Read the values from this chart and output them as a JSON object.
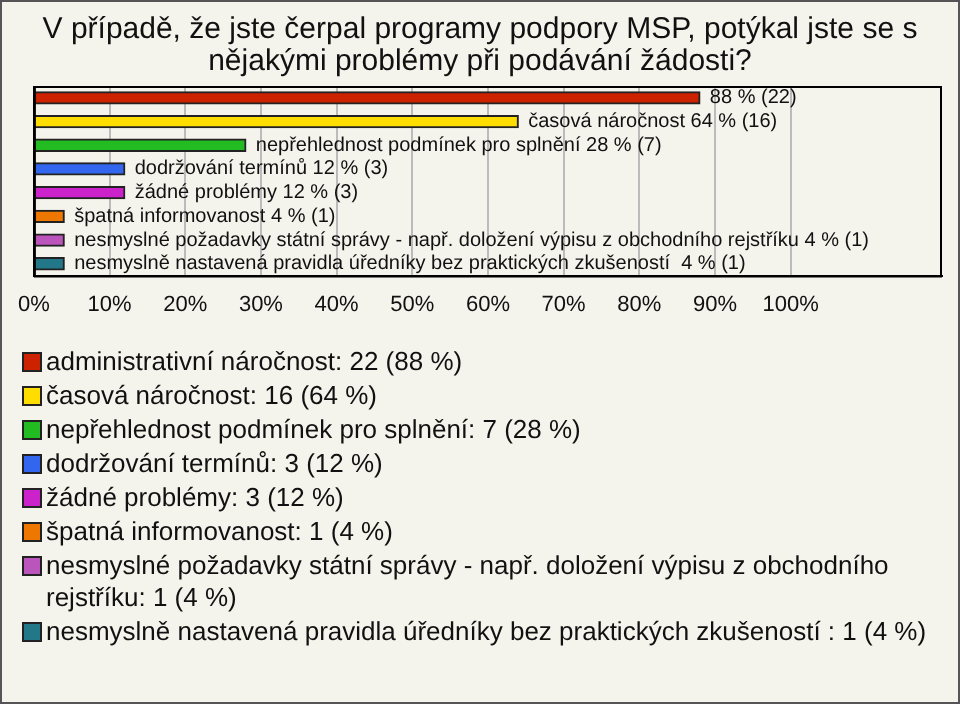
{
  "chart_data": {
    "type": "bar",
    "orientation": "horizontal",
    "title": "V případě, že jste čerpal programy podpory MSP, potýkal jste se s nějakými problémy při podávání žádosti?",
    "categories": [
      null,
      null,
      null,
      null,
      null,
      null,
      null,
      null
    ],
    "series": [
      {
        "name": "administrativní náročnost: 22 (88 %)",
        "color": "#cc2200",
        "values": [
          88,
          null,
          null,
          null,
          null,
          null,
          null,
          null
        ],
        "value_labels": [
          "88 % (22)",
          null,
          null,
          null,
          null,
          null,
          null,
          null
        ]
      },
      {
        "name": "časová náročnost: 16 (64 %)",
        "color": "#ffdd00",
        "values": [
          null,
          64,
          null,
          null,
          null,
          null,
          null,
          null
        ],
        "value_labels": [
          null,
          "časová náročnost 64 % (16)",
          null,
          null,
          null,
          null,
          null,
          null
        ]
      },
      {
        "name": "nepřehlednost podmínek pro splnění: 7 (28 %)",
        "color": "#22bb22",
        "values": [
          null,
          null,
          28,
          null,
          null,
          null,
          null,
          null
        ],
        "value_labels": [
          null,
          null,
          "nepřehlednost podmínek pro splnění 28 % (7)",
          null,
          null,
          null,
          null,
          null
        ]
      },
      {
        "name": "dodržování termínů: 3 (12 %)",
        "color": "#3366ee",
        "values": [
          null,
          null,
          null,
          12,
          null,
          null,
          null,
          null
        ],
        "value_labels": [
          null,
          null,
          null,
          "dodržování termínů 12 % (3)",
          null,
          null,
          null,
          null
        ]
      },
      {
        "name": "žádné problémy: 3 (12 %)",
        "color": "#cc22cc",
        "values": [
          null,
          null,
          null,
          null,
          12,
          null,
          null,
          null
        ],
        "value_labels": [
          null,
          null,
          null,
          null,
          "žádné problémy 12 % (3)",
          null,
          null,
          null
        ]
      },
      {
        "name": "špatná informovanost: 1 (4 %)",
        "color": "#ee7700",
        "values": [
          null,
          null,
          null,
          null,
          null,
          4,
          null,
          null
        ],
        "value_labels": [
          null,
          null,
          null,
          null,
          null,
          "špatná informovanost 4 % (1)",
          null,
          null
        ]
      },
      {
        "name": "nesmyslné požadavky státní správy - např. doložení výpisu z obchodního rejstříku: 1 (4 %)",
        "color": "#bb55bb",
        "values": [
          null,
          null,
          null,
          null,
          null,
          null,
          4,
          null
        ],
        "value_labels": [
          null,
          null,
          null,
          null,
          null,
          null,
          "nesmyslné požadavky státní správy - např. doložení výpisu z obchodního rejstříku 4 % (1)",
          null
        ]
      },
      {
        "name": "nesmyslně nastavená pravidla úředníky bez praktických zkušeností : 1 (4 %)",
        "color": "#227788",
        "values": [
          null,
          null,
          null,
          null,
          null,
          null,
          null,
          4
        ],
        "value_labels": [
          null,
          null,
          null,
          null,
          null,
          null,
          null,
          "nesmyslně nastavená pravidla úředníky bez praktických zkušeností  4 % (1)"
        ]
      }
    ],
    "xlim": [
      0,
      120
    ],
    "xticks": [
      {
        "value": 0,
        "label": "0%"
      },
      {
        "value": 10,
        "label": "10%"
      },
      {
        "value": 20,
        "label": "20%"
      },
      {
        "value": 30,
        "label": "30%"
      },
      {
        "value": 40,
        "label": "40%"
      },
      {
        "value": 50,
        "label": "50%"
      },
      {
        "value": 60,
        "label": "60%"
      },
      {
        "value": 70,
        "label": "70%"
      },
      {
        "value": 80,
        "label": "80%"
      },
      {
        "value": 90,
        "label": "90%"
      },
      {
        "value": 100,
        "label": "100%"
      }
    ],
    "grid": "x",
    "legend": "bottom",
    "tick_labels": "x"
  }
}
